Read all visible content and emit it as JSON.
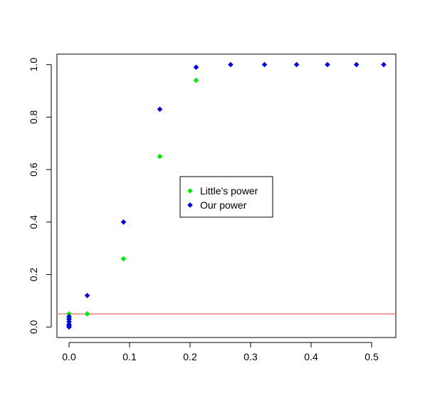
{
  "chart_data": {
    "type": "scatter",
    "title": "",
    "xlabel": "",
    "ylabel": "",
    "xlim": [
      -0.02,
      0.54
    ],
    "ylim": [
      -0.04,
      1.04
    ],
    "xticks": [
      0.0,
      0.1,
      0.2,
      0.3,
      0.4,
      0.5
    ],
    "xtick_labels": [
      "0.0",
      "0.1",
      "0.2",
      "0.3",
      "0.4",
      "0.5"
    ],
    "yticks": [
      0.0,
      0.2,
      0.4,
      0.6,
      0.8,
      1.0
    ],
    "ytick_labels": [
      "0.0",
      "0.2",
      "0.4",
      "0.6",
      "0.8",
      "1.0"
    ],
    "grid": false,
    "legend_position": "center",
    "reference_line": {
      "orientation": "horizontal",
      "y": 0.05,
      "color": "#f08080"
    },
    "series": [
      {
        "name": "Little's power",
        "color": "#00ee00",
        "marker": "diamond",
        "x": [
          0.0,
          0.0,
          0.0,
          0.0,
          0.0,
          0.0,
          0.0,
          0.03,
          0.09,
          0.15,
          0.21
        ],
        "y": [
          0.05,
          0.04,
          0.035,
          0.03,
          0.02,
          0.01,
          0.0,
          0.05,
          0.26,
          0.65,
          0.94
        ]
      },
      {
        "name": "Our power",
        "color": "#0000ee",
        "marker": "diamond",
        "x": [
          0.0,
          0.0,
          0.0,
          0.0,
          0.0,
          0.0,
          0.03,
          0.09,
          0.15,
          0.21,
          0.267,
          0.323,
          0.376,
          0.427,
          0.475,
          0.52
        ],
        "y": [
          0.04,
          0.03,
          0.02,
          0.01,
          0.005,
          0.0,
          0.12,
          0.4,
          0.83,
          0.99,
          1.0,
          1.0,
          1.0,
          1.0,
          1.0,
          1.0
        ]
      }
    ]
  }
}
